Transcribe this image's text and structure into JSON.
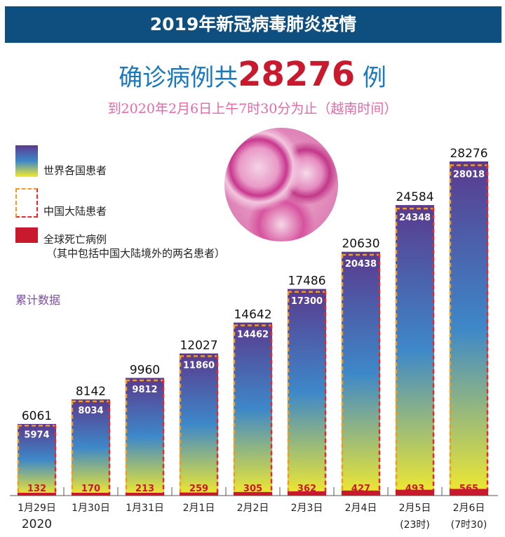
{
  "header": {
    "title": "2019年新冠病毒肺炎疫情"
  },
  "headline": {
    "prefix": "确诊病例共",
    "number": "28276",
    "suffix": " 例"
  },
  "subtitle": "到2020年2月6日上午7时30分为止（越南时间）",
  "legend": {
    "world": "世界各国患者",
    "china": "中国大陆患者",
    "deaths": "全球死亡病例",
    "deaths_note": "（其中包括中国大陆境外的两名患者）"
  },
  "cumulative_label": "累计数据",
  "colors": {
    "banner": "#0e4f80",
    "headline": "#1a78bd",
    "accent": "#c8192e",
    "subtitle": "#e26aa6",
    "gradient_top": "#5a3a8e",
    "gradient_mid": "#3d88c9",
    "gradient_bottom": "#f2ea2e"
  },
  "chart_data": {
    "type": "bar",
    "categories": [
      "1月29日",
      "1月30日",
      "1月31日",
      "2月1日",
      "2月2日",
      "2月3日",
      "2月4日",
      "2月5日",
      "2月6日"
    ],
    "category_notes": [
      "2020",
      "",
      "",
      "",
      "",
      "",
      "",
      "(23时)",
      "(7时30)"
    ],
    "series": [
      {
        "name": "世界各国患者",
        "values": [
          6061,
          8142,
          9960,
          12027,
          14642,
          17486,
          20630,
          24584,
          28276
        ]
      },
      {
        "name": "中国大陆患者",
        "values": [
          5974,
          8034,
          9812,
          11860,
          14462,
          17300,
          20438,
          24348,
          28018
        ]
      },
      {
        "name": "全球死亡病例",
        "values": [
          132,
          170,
          213,
          259,
          305,
          362,
          427,
          493,
          565
        ]
      }
    ],
    "ylim": [
      0,
      28276
    ]
  }
}
